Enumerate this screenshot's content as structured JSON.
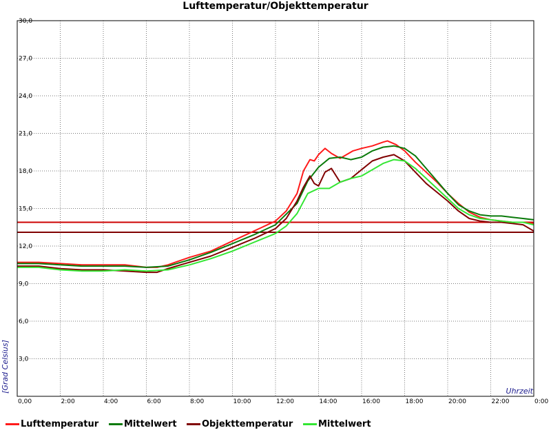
{
  "chart_data": {
    "type": "line",
    "title": "Lufttemperatur/Objekttemperatur",
    "xlabel": "Uhrzeit",
    "ylabel": "[Grad Celsius]",
    "xlim": [
      0,
      24
    ],
    "ylim": [
      0,
      30
    ],
    "x_ticks": [
      {
        "value": 0,
        "label": "0,00"
      },
      {
        "value": 2,
        "label": "2:00"
      },
      {
        "value": 4,
        "label": "4:00"
      },
      {
        "value": 6,
        "label": "6:00"
      },
      {
        "value": 8,
        "label": "8:00"
      },
      {
        "value": 10,
        "label": "10:00"
      },
      {
        "value": 12,
        "label": "12:00"
      },
      {
        "value": 14,
        "label": "14:00"
      },
      {
        "value": 16,
        "label": "16:00"
      },
      {
        "value": 18,
        "label": "18:00"
      },
      {
        "value": 20,
        "label": "20:00"
      },
      {
        "value": 22,
        "label": "22:00"
      },
      {
        "value": 24,
        "label": "0:00"
      }
    ],
    "y_ticks": [
      {
        "value": 3,
        "label": "3,0"
      },
      {
        "value": 6,
        "label": "6,0"
      },
      {
        "value": 9,
        "label": "9,0"
      },
      {
        "value": 12,
        "label": "12,0"
      },
      {
        "value": 15,
        "label": "15,0"
      },
      {
        "value": 18,
        "label": "18,0"
      },
      {
        "value": 21,
        "label": "21,0"
      },
      {
        "value": 24,
        "label": "24,0"
      },
      {
        "value": 27,
        "label": "27,0"
      },
      {
        "value": 30,
        "label": "30,0"
      }
    ],
    "grid": true,
    "legend_position": "bottom",
    "hlines": [
      {
        "y": 13.9,
        "color": "#cc0000"
      },
      {
        "y": 13.1,
        "color": "#800000"
      }
    ],
    "series": [
      {
        "name": "Lufttemperatur",
        "color": "#ff1a1a",
        "x": [
          0,
          1,
          2,
          3,
          4,
          5,
          6,
          6.5,
          7,
          7.5,
          8,
          9,
          10,
          11,
          12,
          12.5,
          13,
          13.3,
          13.6,
          13.8,
          14,
          14.3,
          14.6,
          15,
          15.3,
          15.6,
          16,
          16.5,
          17,
          17.2,
          17.6,
          18,
          18.5,
          19,
          19.5,
          20,
          20.5,
          21,
          21.5,
          22,
          22.5,
          23,
          23.5,
          24
        ],
        "y": [
          10.7,
          10.7,
          10.6,
          10.5,
          10.5,
          10.5,
          10.3,
          10.3,
          10.5,
          10.8,
          11.1,
          11.6,
          12.4,
          13.2,
          14.0,
          14.8,
          16.2,
          18.0,
          18.9,
          18.8,
          19.3,
          19.8,
          19.4,
          19.0,
          19.3,
          19.6,
          19.8,
          20.0,
          20.3,
          20.4,
          20.1,
          19.6,
          18.7,
          17.9,
          17.1,
          16.2,
          15.4,
          14.7,
          14.3,
          14.1,
          14.0,
          13.9,
          13.9,
          13.8
        ]
      },
      {
        "name": "Mittelwert",
        "color": "#0a7a0a",
        "x": [
          0,
          1,
          2,
          3,
          4,
          5,
          6,
          7,
          8,
          9,
          10,
          11,
          12,
          13,
          13.5,
          14,
          14.5,
          15,
          15.5,
          16,
          16.5,
          17,
          17.5,
          18,
          18.5,
          19,
          19.5,
          20,
          20.5,
          21,
          21.5,
          22,
          22.5,
          23,
          23.5,
          24
        ],
        "y": [
          10.6,
          10.6,
          10.5,
          10.4,
          10.4,
          10.4,
          10.3,
          10.4,
          10.9,
          11.5,
          12.2,
          12.9,
          13.7,
          15.4,
          17.2,
          18.3,
          19.0,
          19.1,
          18.9,
          19.1,
          19.6,
          19.9,
          20.0,
          19.8,
          19.2,
          18.2,
          17.2,
          16.2,
          15.3,
          14.8,
          14.5,
          14.4,
          14.4,
          14.3,
          14.2,
          14.1
        ]
      },
      {
        "name": "Objekttemperatur",
        "color": "#800000",
        "x": [
          0,
          1,
          2,
          3,
          4,
          5,
          6,
          6.5,
          7,
          8,
          9,
          10,
          11,
          12,
          12.5,
          13,
          13.3,
          13.6,
          13.8,
          14,
          14.3,
          14.6,
          15,
          15.5,
          16,
          16.5,
          17,
          17.5,
          18,
          18.5,
          19,
          19.5,
          20,
          20.5,
          21,
          21.5,
          22,
          22.5,
          23,
          23.5,
          24
        ],
        "y": [
          10.4,
          10.4,
          10.2,
          10.1,
          10.1,
          10.0,
          9.9,
          9.9,
          10.2,
          10.7,
          11.2,
          11.9,
          12.6,
          13.4,
          14.2,
          15.6,
          16.7,
          17.6,
          17.0,
          16.8,
          17.9,
          18.2,
          17.1,
          17.4,
          18.1,
          18.8,
          19.1,
          19.3,
          18.8,
          17.9,
          17.0,
          16.3,
          15.6,
          14.8,
          14.2,
          14.0,
          13.9,
          13.9,
          13.8,
          13.7,
          13.2
        ]
      },
      {
        "name": "Mittelwert",
        "color": "#33e633",
        "x": [
          0,
          1,
          2,
          3,
          4,
          5,
          6,
          7,
          8,
          9,
          10,
          11,
          12,
          12.5,
          13,
          13.5,
          14,
          14.5,
          15,
          15.5,
          16,
          16.5,
          17,
          17.5,
          18,
          18.5,
          19,
          19.5,
          20,
          20.5,
          21,
          21.5,
          22,
          22.5,
          23,
          23.5,
          24
        ],
        "y": [
          10.3,
          10.3,
          10.1,
          10.0,
          10.0,
          10.1,
          10.0,
          10.1,
          10.5,
          11.0,
          11.6,
          12.3,
          13.0,
          13.6,
          14.6,
          16.2,
          16.6,
          16.6,
          17.1,
          17.4,
          17.6,
          18.1,
          18.6,
          18.9,
          18.8,
          18.2,
          17.4,
          16.6,
          15.8,
          15.0,
          14.5,
          14.2,
          14.1,
          14.0,
          13.9,
          13.9,
          13.7
        ]
      }
    ]
  }
}
